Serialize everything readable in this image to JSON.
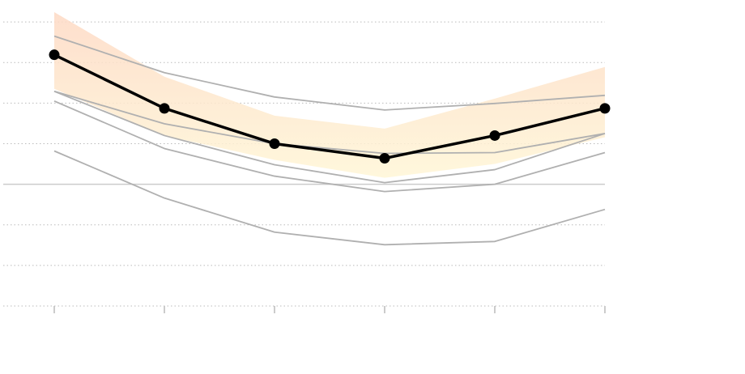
{
  "chart_data": {
    "type": "line",
    "categories": [
      null,
      null,
      null,
      null,
      null,
      null
    ],
    "ylim": [
      -3,
      4.5
    ],
    "yticks": [
      -3,
      -2,
      -1,
      0,
      1,
      2,
      3,
      4
    ],
    "grid": true,
    "band": {
      "upper": [
        4.24,
        2.65,
        1.69,
        1.37,
        2.11,
        2.89
      ],
      "lower": [
        2.35,
        1.2,
        0.6,
        0.16,
        0.5,
        1.16
      ],
      "color": "#fde3d2"
    },
    "series": [
      {
        "color": "#b0b0b0",
        "values": [
          3.65,
          2.75,
          2.15,
          1.83,
          1.99,
          2.19
        ]
      },
      {
        "color": "#b0b0b0",
        "values": [
          2.29,
          1.49,
          1.0,
          0.76,
          0.78,
          1.25
        ]
      },
      {
        "color": "#b0b0b0",
        "values": [
          2.29,
          1.2,
          0.48,
          0.04,
          0.36,
          1.25
        ]
      },
      {
        "color": "#b0b0b0",
        "values": [
          2.05,
          0.88,
          0.2,
          -0.18,
          0,
          0.78
        ]
      },
      {
        "color": "#b0b0b0",
        "values": [
          0.82,
          -0.34,
          -1.18,
          -1.49,
          -1.41,
          -0.62
        ]
      },
      {
        "color": "#000000",
        "values": [
          3.19,
          1.87,
          1.0,
          0.64,
          1.2,
          1.87
        ],
        "markers": true
      }
    ]
  }
}
